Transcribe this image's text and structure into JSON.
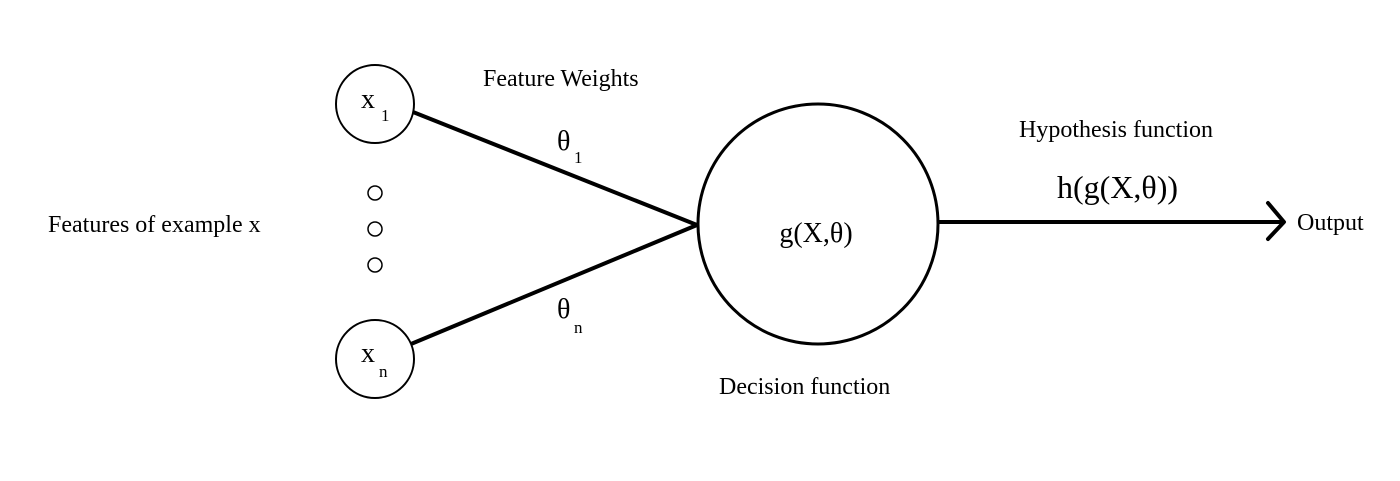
{
  "labels": {
    "features_of_example": "Features of example x",
    "feature_weights": "Feature Weights",
    "decision_function": "Decision function",
    "hypothesis_function": "Hypothesis function",
    "output": "Output"
  },
  "inputs": {
    "x1": {
      "base": "x",
      "sub": "1"
    },
    "xn": {
      "base": "x",
      "sub": "n"
    }
  },
  "weights": {
    "theta1": {
      "base": "θ",
      "sub": "1"
    },
    "thetan": {
      "base": "θ",
      "sub": "n"
    }
  },
  "decision_node_label": "g(X,θ)",
  "hypothesis_expression": "h(g(X,θ))",
  "colors": {
    "stroke": "#000000",
    "background": "#ffffff"
  }
}
